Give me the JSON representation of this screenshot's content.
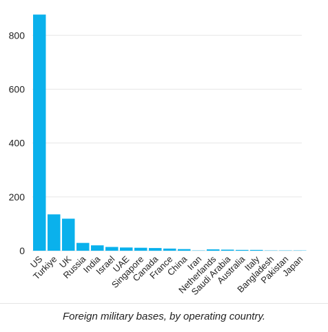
{
  "chart_data": {
    "type": "bar",
    "categories": [
      "US",
      "Turkiye",
      "UK",
      "Russia",
      "India",
      "Israel",
      "UAE",
      "Singapore",
      "Canada",
      "France",
      "China",
      "Iran",
      "Netherlands",
      "Saudi Arabia",
      "Australia",
      "Italy",
      "Bangladesh",
      "Pakistan",
      "Japan"
    ],
    "values": [
      877,
      135,
      119,
      29,
      20,
      14,
      12,
      11,
      10,
      8,
      6,
      1,
      5,
      4,
      3,
      3,
      1,
      1,
      1
    ],
    "yticks": [
      0,
      200,
      400,
      600,
      800
    ],
    "ylim": [
      0,
      880
    ],
    "grid": true,
    "bar_color": "#0ab1ec",
    "grid_color": "#e6e6e6"
  },
  "caption": "Foreign military bases, by operating country."
}
